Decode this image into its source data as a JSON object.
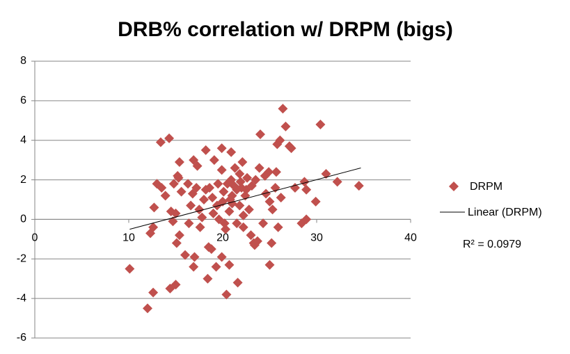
{
  "chart_data": {
    "type": "scatter",
    "title": "DRB% correlation w/ DRPM (bigs)",
    "xlim": [
      0,
      40
    ],
    "xticks": [
      0,
      10,
      20,
      30,
      40
    ],
    "ylim": [
      -6,
      8
    ],
    "yticks": [
      -6,
      -4,
      -2,
      0,
      2,
      4,
      6,
      8
    ],
    "grid": true,
    "series": [
      {
        "name": "DRPM",
        "color": "#c0504d",
        "x": [
          10.1,
          12.0,
          12.3,
          12.6,
          12.7,
          12.6,
          13.0,
          13.4,
          14.3,
          13.5,
          13.9,
          14.4,
          15.0,
          14.5,
          14.7,
          14.8,
          15.2,
          15.4,
          15.1,
          15.4,
          15.0,
          15.6,
          16.0,
          16.4,
          16.6,
          16.3,
          16.9,
          17.3,
          16.9,
          17.0,
          17.2,
          17.5,
          17.6,
          18.2,
          18.4,
          18.2,
          18.5,
          18.8,
          18.9,
          19.1,
          19.3,
          19.4,
          19.6,
          19.9,
          19.9,
          19.9,
          20.0,
          20.1,
          20.3,
          20.4,
          20.7,
          20.9,
          20.9,
          20.7,
          21.0,
          21.2,
          21.3,
          21.5,
          21.6,
          21.8,
          21.9,
          22.1,
          22.2,
          22.4,
          22.6,
          22.8,
          23.0,
          23.1,
          23.3,
          23.4,
          23.7,
          23.9,
          24.0,
          24.3,
          24.6,
          24.9,
          25.0,
          25.0,
          25.2,
          25.3,
          25.6,
          25.7,
          25.8,
          25.9,
          26.1,
          26.2,
          26.4,
          26.7,
          27.1,
          27.3,
          27.7,
          28.4,
          28.7,
          28.9,
          28.9,
          29.9,
          30.4,
          31.0,
          32.2,
          34.5,
          20.5,
          21.5,
          22.0,
          21.0,
          20.2,
          19.0,
          18.0,
          17.8,
          21.8,
          22.5,
          23.5,
          24.5,
          19.5,
          20.8,
          22.2,
          15.3,
          16.8,
          18.6
        ],
        "values": [
          -2.5,
          -4.5,
          -0.7,
          -0.4,
          0.6,
          -3.7,
          1.8,
          3.9,
          4.1,
          1.6,
          1.2,
          -3.5,
          -3.3,
          0.4,
          -0.1,
          1.8,
          2.2,
          2.9,
          -1.2,
          -0.8,
          0.3,
          1.4,
          -1.8,
          -0.2,
          0.7,
          1.8,
          3.0,
          2.7,
          -2.4,
          -1.9,
          1.6,
          0.5,
          -0.4,
          3.5,
          -3.0,
          1.5,
          -1.4,
          -1.5,
          1.1,
          3.0,
          -2.4,
          0.7,
          0.0,
          3.6,
          2.5,
          -1.9,
          0.9,
          1.4,
          -0.5,
          -3.8,
          -2.3,
          3.4,
          2.0,
          0.4,
          1.2,
          1.7,
          2.6,
          -0.2,
          -3.2,
          0.7,
          1.9,
          2.9,
          -0.4,
          1.2,
          2.1,
          0.5,
          -0.8,
          1.7,
          -1.2,
          -1.3,
          -1.1,
          2.6,
          4.3,
          -0.2,
          1.3,
          2.4,
          0.9,
          -2.3,
          -1.2,
          0.5,
          1.6,
          2.4,
          3.8,
          -0.4,
          4.0,
          1.1,
          5.6,
          4.7,
          3.7,
          3.6,
          1.6,
          -0.2,
          1.9,
          0.0,
          1.5,
          0.9,
          4.8,
          2.3,
          1.9,
          1.7,
          1.8,
          1.5,
          1.6,
          0.8,
          -0.2,
          0.3,
          1.0,
          0.1,
          2.3,
          1.5,
          2.0,
          2.2,
          1.8,
          1.0,
          0.2,
          2.1,
          1.3,
          1.6
        ]
      }
    ],
    "trendline": {
      "name": "Linear (DRPM)",
      "color": "#000000",
      "x": [
        10.1,
        34.7
      ],
      "values": [
        -0.5,
        2.6
      ]
    },
    "r_squared_label": "R² = 0.0979",
    "legend": "right"
  }
}
